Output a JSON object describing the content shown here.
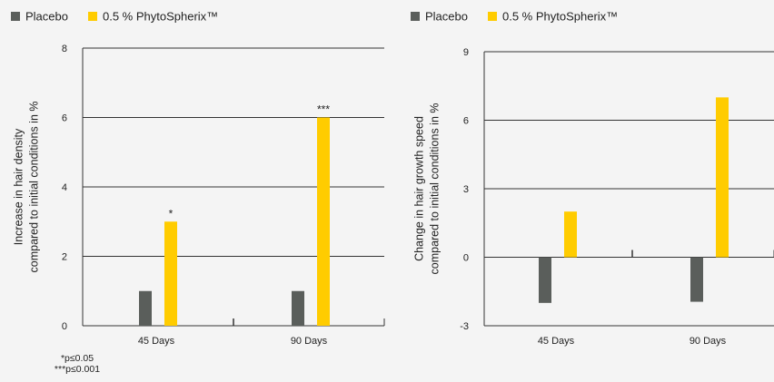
{
  "chart_data": [
    {
      "type": "bar",
      "categories": [
        "45 Days",
        "90 Days"
      ],
      "series": [
        {
          "name": "Placebo",
          "values": [
            1,
            1
          ]
        },
        {
          "name": "0.5 % PhytoSpherix™",
          "values": [
            3,
            6
          ]
        }
      ],
      "ylabel_line1": "Increase in hair density",
      "ylabel_line2": "compared to initial conditions in %",
      "ylim": [
        0,
        8
      ],
      "yticks": [
        0,
        2,
        4,
        6,
        8
      ],
      "significance": [
        {
          "series": 1,
          "category": 0,
          "label": "*"
        },
        {
          "series": 1,
          "category": 1,
          "label": "***"
        }
      ],
      "footnotes": [
        "*p≤0.05",
        "***p≤0.001"
      ],
      "legend_position": "top-left",
      "grid": true
    },
    {
      "type": "bar",
      "categories": [
        "45 Days",
        "90 Days"
      ],
      "series": [
        {
          "name": "Placebo",
          "values": [
            -2,
            -1.95
          ]
        },
        {
          "name": "0.5 % PhytoSpherix™",
          "values": [
            2,
            7
          ]
        }
      ],
      "ylabel_line1": "Change in hair growth speed",
      "ylabel_line2": "compared to initial conditions in %",
      "ylim": [
        -3,
        9
      ],
      "yticks": [
        -3,
        0,
        3,
        6,
        9
      ],
      "legend_position": "top-left",
      "grid": true
    }
  ],
  "colors": {
    "placebo": "#5a5e5b",
    "phyto": "#ffcc00",
    "axis": "#222222"
  }
}
